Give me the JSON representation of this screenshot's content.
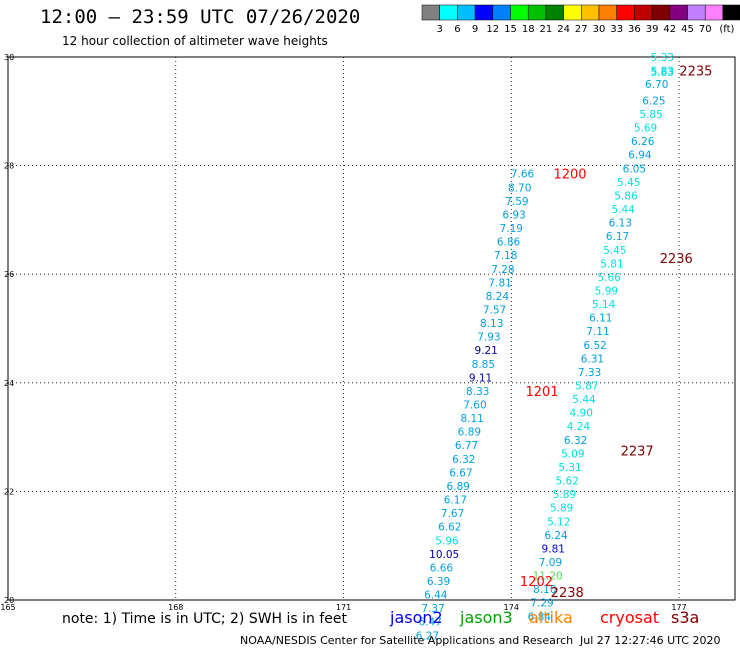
{
  "header": {
    "title": "12:00 – 23:59 UTC 07/26/2020",
    "subtitle": "12 hour collection of altimeter wave heights"
  },
  "legend": {
    "colors": [
      "#808080",
      "#00ffff",
      "#00bfff",
      "#0000ff",
      "#0080ff",
      "#00ff00",
      "#00c000",
      "#008000",
      "#ffff00",
      "#ffc000",
      "#ff8000",
      "#ff0000",
      "#c00000",
      "#800000",
      "#800080",
      "#c080ff",
      "#ff80ff",
      "#000000"
    ],
    "labels": [
      "3",
      "6",
      "9",
      "12",
      "15",
      "18",
      "21",
      "24",
      "27",
      "30",
      "33",
      "36",
      "39",
      "42",
      "45",
      "70"
    ],
    "unit": "(ft)"
  },
  "footer": {
    "note": "note: 1) Time is in UTC; 2) SWH is in feet",
    "satellites": [
      {
        "name": "jason2",
        "color": "#0000ff"
      },
      {
        "name": "jason3",
        "color": "#00a000"
      },
      {
        "name": "altika",
        "color": "#ff8000"
      },
      {
        "name": "cryosat",
        "color": "#ff0000"
      },
      {
        "name": "s3a",
        "color": "#800000"
      }
    ],
    "credit": "NOAA/NESDIS Center for Satellite Applications and Research",
    "timestamp": "Jul 27 12:27:46 UTC 2020"
  },
  "chart_data": {
    "type": "scatter",
    "xlim": [
      165,
      178
    ],
    "ylim": [
      20,
      30
    ],
    "x_ticks": [
      165,
      168,
      171,
      174,
      177
    ],
    "y_ticks": [
      20,
      22,
      24,
      26,
      28,
      30
    ],
    "grid": true,
    "points": [
      {
        "x": 176.7,
        "y": 30.0,
        "v": "5.33",
        "c": "#00e0e0"
      },
      {
        "x": 176.7,
        "y": 29.75,
        "v": "5.83",
        "c": "#00e0e0"
      },
      {
        "x": 176.7,
        "y": 29.72,
        "v": "5.83",
        "c": "#00e0e0"
      },
      {
        "x": 176.6,
        "y": 29.5,
        "v": "6.70",
        "c": "#00a0e0"
      },
      {
        "x": 176.55,
        "y": 29.2,
        "v": "6.25",
        "c": "#00a0e0"
      },
      {
        "x": 176.5,
        "y": 28.95,
        "v": "5.85",
        "c": "#00e0e0"
      },
      {
        "x": 176.4,
        "y": 28.7,
        "v": "5.69",
        "c": "#00e0e0"
      },
      {
        "x": 176.35,
        "y": 28.45,
        "v": "6.26",
        "c": "#00a0e0"
      },
      {
        "x": 176.3,
        "y": 28.2,
        "v": "6.94",
        "c": "#00a0e0"
      },
      {
        "x": 176.2,
        "y": 27.95,
        "v": "6.05",
        "c": "#00a0e0"
      },
      {
        "x": 176.1,
        "y": 27.7,
        "v": "5.45",
        "c": "#00e0e0"
      },
      {
        "x": 176.05,
        "y": 27.45,
        "v": "5.86",
        "c": "#00e0e0"
      },
      {
        "x": 176.0,
        "y": 27.2,
        "v": "5.44",
        "c": "#00e0e0"
      },
      {
        "x": 175.95,
        "y": 26.95,
        "v": "6.13",
        "c": "#00a0e0"
      },
      {
        "x": 175.9,
        "y": 26.7,
        "v": "6.17",
        "c": "#00a0e0"
      },
      {
        "x": 175.85,
        "y": 26.45,
        "v": "5.45",
        "c": "#00e0e0"
      },
      {
        "x": 175.8,
        "y": 26.2,
        "v": "5.81",
        "c": "#00e0e0"
      },
      {
        "x": 175.75,
        "y": 25.95,
        "v": "5.66",
        "c": "#00e0e0"
      },
      {
        "x": 175.7,
        "y": 25.7,
        "v": "5.99",
        "c": "#00e0e0"
      },
      {
        "x": 175.65,
        "y": 25.45,
        "v": "5.14",
        "c": "#00e0e0"
      },
      {
        "x": 175.6,
        "y": 25.2,
        "v": "6.11",
        "c": "#00a0e0"
      },
      {
        "x": 175.55,
        "y": 24.95,
        "v": "7.11",
        "c": "#00a0e0"
      },
      {
        "x": 175.5,
        "y": 24.7,
        "v": "6.52",
        "c": "#00a0e0"
      },
      {
        "x": 175.45,
        "y": 24.45,
        "v": "6.31",
        "c": "#00a0e0"
      },
      {
        "x": 175.4,
        "y": 24.2,
        "v": "7.33",
        "c": "#00a0e0"
      },
      {
        "x": 175.35,
        "y": 23.95,
        "v": "5.87",
        "c": "#00e0e0"
      },
      {
        "x": 175.3,
        "y": 23.7,
        "v": "5.44",
        "c": "#00e0e0"
      },
      {
        "x": 175.25,
        "y": 23.45,
        "v": "4.90",
        "c": "#00e0e0"
      },
      {
        "x": 175.2,
        "y": 23.2,
        "v": "4.24",
        "c": "#00e0e0"
      },
      {
        "x": 175.15,
        "y": 22.95,
        "v": "6.32",
        "c": "#00a0e0"
      },
      {
        "x": 175.1,
        "y": 22.7,
        "v": "5.09",
        "c": "#00e0e0"
      },
      {
        "x": 175.05,
        "y": 22.45,
        "v": "5.31",
        "c": "#00e0e0"
      },
      {
        "x": 175.0,
        "y": 22.2,
        "v": "5.62",
        "c": "#00e0e0"
      },
      {
        "x": 174.95,
        "y": 21.95,
        "v": "5.89",
        "c": "#00e0e0"
      },
      {
        "x": 174.9,
        "y": 21.7,
        "v": "5.89",
        "c": "#00e0e0"
      },
      {
        "x": 174.85,
        "y": 21.45,
        "v": "5.12",
        "c": "#00e0e0"
      },
      {
        "x": 174.8,
        "y": 21.2,
        "v": "6.24",
        "c": "#00a0e0"
      },
      {
        "x": 174.75,
        "y": 20.95,
        "v": "9.81",
        "c": "#0000e0"
      },
      {
        "x": 174.7,
        "y": 20.7,
        "v": "7.09",
        "c": "#00a0e0"
      },
      {
        "x": 174.65,
        "y": 20.45,
        "v": "11.20",
        "c": "#50e050"
      },
      {
        "x": 174.6,
        "y": 20.2,
        "v": "8.10",
        "c": "#00a0e0"
      },
      {
        "x": 174.55,
        "y": 19.95,
        "v": "7.29",
        "c": "#00a0e0"
      },
      {
        "x": 174.5,
        "y": 19.7,
        "v": "6.84",
        "c": "#00a0e0"
      },
      {
        "x": 174.2,
        "y": 27.85,
        "v": "7.66",
        "c": "#00a0e0"
      },
      {
        "x": 174.15,
        "y": 27.6,
        "v": "8.70",
        "c": "#00a0e0"
      },
      {
        "x": 174.1,
        "y": 27.35,
        "v": "7.59",
        "c": "#00a0e0"
      },
      {
        "x": 174.05,
        "y": 27.1,
        "v": "6.93",
        "c": "#00a0e0"
      },
      {
        "x": 174.0,
        "y": 26.85,
        "v": "7.19",
        "c": "#00a0e0"
      },
      {
        "x": 173.95,
        "y": 26.6,
        "v": "6.86",
        "c": "#00a0e0"
      },
      {
        "x": 173.9,
        "y": 26.35,
        "v": "7.18",
        "c": "#00a0e0"
      },
      {
        "x": 173.85,
        "y": 26.1,
        "v": "7.28",
        "c": "#00a0e0"
      },
      {
        "x": 173.8,
        "y": 25.85,
        "v": "7.81",
        "c": "#00a0e0"
      },
      {
        "x": 173.75,
        "y": 25.6,
        "v": "8.24",
        "c": "#00a0e0"
      },
      {
        "x": 173.7,
        "y": 25.35,
        "v": "7.57",
        "c": "#00a0e0"
      },
      {
        "x": 173.65,
        "y": 25.1,
        "v": "8.13",
        "c": "#00a0e0"
      },
      {
        "x": 173.6,
        "y": 24.85,
        "v": "7.93",
        "c": "#00a0e0"
      },
      {
        "x": 173.55,
        "y": 24.6,
        "v": "9.21",
        "c": "#0000a0"
      },
      {
        "x": 173.5,
        "y": 24.35,
        "v": "8.85",
        "c": "#00a0e0"
      },
      {
        "x": 173.45,
        "y": 24.1,
        "v": "9.11",
        "c": "#0000a0"
      },
      {
        "x": 173.4,
        "y": 23.85,
        "v": "8.33",
        "c": "#00a0e0"
      },
      {
        "x": 173.35,
        "y": 23.6,
        "v": "7.60",
        "c": "#00a0e0"
      },
      {
        "x": 173.3,
        "y": 23.35,
        "v": "8.11",
        "c": "#00a0e0"
      },
      {
        "x": 173.25,
        "y": 23.1,
        "v": "6.89",
        "c": "#00a0e0"
      },
      {
        "x": 173.2,
        "y": 22.85,
        "v": "6.77",
        "c": "#00a0e0"
      },
      {
        "x": 173.15,
        "y": 22.6,
        "v": "6.32",
        "c": "#00a0e0"
      },
      {
        "x": 173.1,
        "y": 22.35,
        "v": "6.67",
        "c": "#00a0e0"
      },
      {
        "x": 173.05,
        "y": 22.1,
        "v": "6.89",
        "c": "#00a0e0"
      },
      {
        "x": 173.0,
        "y": 21.85,
        "v": "6.17",
        "c": "#00a0e0"
      },
      {
        "x": 172.95,
        "y": 21.6,
        "v": "7.67",
        "c": "#00a0e0"
      },
      {
        "x": 172.9,
        "y": 21.35,
        "v": "6.62",
        "c": "#00a0e0"
      },
      {
        "x": 172.85,
        "y": 21.1,
        "v": "5.96",
        "c": "#00e0e0"
      },
      {
        "x": 172.8,
        "y": 20.85,
        "v": "10.05",
        "c": "#0000a0"
      },
      {
        "x": 172.75,
        "y": 20.6,
        "v": "6.66",
        "c": "#00a0e0"
      },
      {
        "x": 172.7,
        "y": 20.35,
        "v": "6.39",
        "c": "#00a0e0"
      },
      {
        "x": 172.65,
        "y": 20.1,
        "v": "6.44",
        "c": "#00a0e0"
      },
      {
        "x": 172.6,
        "y": 19.85,
        "v": "7.37",
        "c": "#00a0e0"
      },
      {
        "x": 172.55,
        "y": 19.6,
        "v": "6.47",
        "c": "#00a0e0"
      },
      {
        "x": 172.5,
        "y": 19.35,
        "v": "6.27",
        "c": "#00a0e0"
      }
    ],
    "time_labels": [
      {
        "x": 177.3,
        "y": 29.75,
        "v": "2235",
        "c": "#800000"
      },
      {
        "x": 175.05,
        "y": 27.85,
        "v": "1200",
        "c": "#ff0000"
      },
      {
        "x": 176.95,
        "y": 26.3,
        "v": "2236",
        "c": "#800000"
      },
      {
        "x": 174.55,
        "y": 23.85,
        "v": "1201",
        "c": "#ff0000"
      },
      {
        "x": 176.25,
        "y": 22.75,
        "v": "2237",
        "c": "#800000"
      },
      {
        "x": 174.45,
        "y": 20.35,
        "v": "1202",
        "c": "#ff0000"
      },
      {
        "x": 175.0,
        "y": 20.15,
        "v": "2238",
        "c": "#800000"
      }
    ]
  }
}
